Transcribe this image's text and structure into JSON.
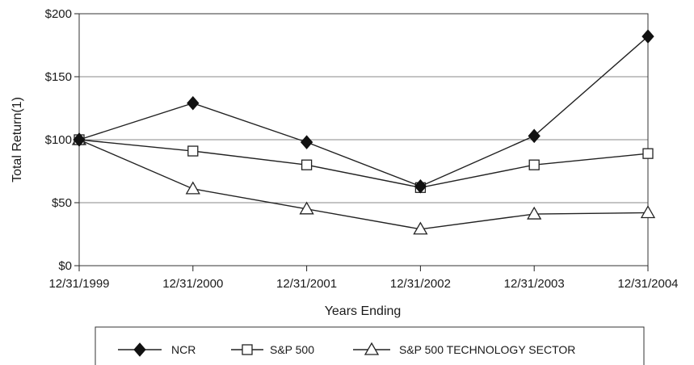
{
  "chart_data": {
    "type": "line",
    "title": "",
    "xlabel": "Years Ending",
    "ylabel": "Total Return(1)",
    "categories": [
      "12/31/1999",
      "12/31/2000",
      "12/31/2001",
      "12/31/2002",
      "12/31/2003",
      "12/31/2004"
    ],
    "ylim": [
      0,
      200
    ],
    "yticks": [
      0,
      50,
      100,
      150,
      200
    ],
    "ytick_labels": [
      "$0",
      "$50",
      "$100",
      "$150",
      "$200"
    ],
    "grid": "horizontal",
    "legend_position": "bottom",
    "series": [
      {
        "name": "NCR",
        "marker": "filled-diamond",
        "color": "#222222",
        "values": [
          100,
          129,
          98,
          63,
          103,
          182
        ]
      },
      {
        "name": "S&P 500",
        "marker": "open-square",
        "color": "#222222",
        "values": [
          100,
          91,
          80,
          62,
          80,
          89
        ]
      },
      {
        "name": "S&P 500 TECHNOLOGY SECTOR",
        "marker": "open-triangle",
        "color": "#222222",
        "values": [
          100,
          61,
          45,
          29,
          41,
          42
        ]
      }
    ]
  }
}
